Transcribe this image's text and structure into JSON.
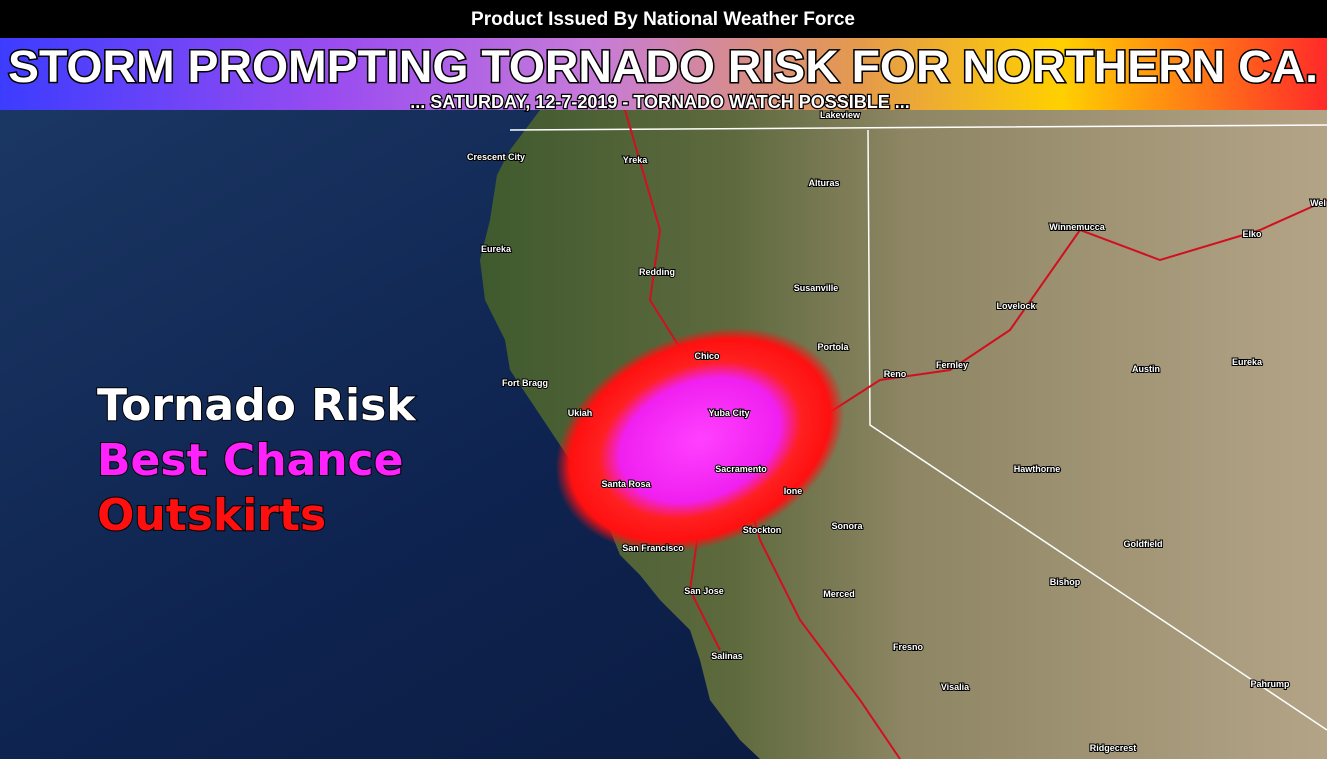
{
  "header": {
    "issuer": "Product Issued By National Weather Force",
    "title": "STORM PROMPTING TORNADO RISK FOR NORTHERN CA.",
    "subtitle": "...  SATURDAY, 12-7-2019 - TORNADO WATCH POSSIBLE ..."
  },
  "legend": {
    "title": "Tornado Risk",
    "items": [
      "Best Chance",
      "Outskirts"
    ]
  },
  "cities": [
    "Lakeview",
    "Crescent City",
    "Yreka",
    "Alturas",
    "Eureka",
    "Redding",
    "Susanville",
    "Winnemucca",
    "Elko",
    "Wel",
    "Lovelock",
    "Chico",
    "Portola",
    "Reno",
    "Fernley",
    "Fort Bragg",
    "Austin",
    "Eureka",
    "Ukiah",
    "Yuba City",
    "Sacramento",
    "Hawthorne",
    "Santa Rosa",
    "Ione",
    "Sonora",
    "Stockton",
    "Goldfield",
    "San Francisco",
    "Bishop",
    "San Jose",
    "Merced",
    "Fresno",
    "Salinas",
    "Visalia",
    "Pahrump",
    "Ridgecrest"
  ]
}
